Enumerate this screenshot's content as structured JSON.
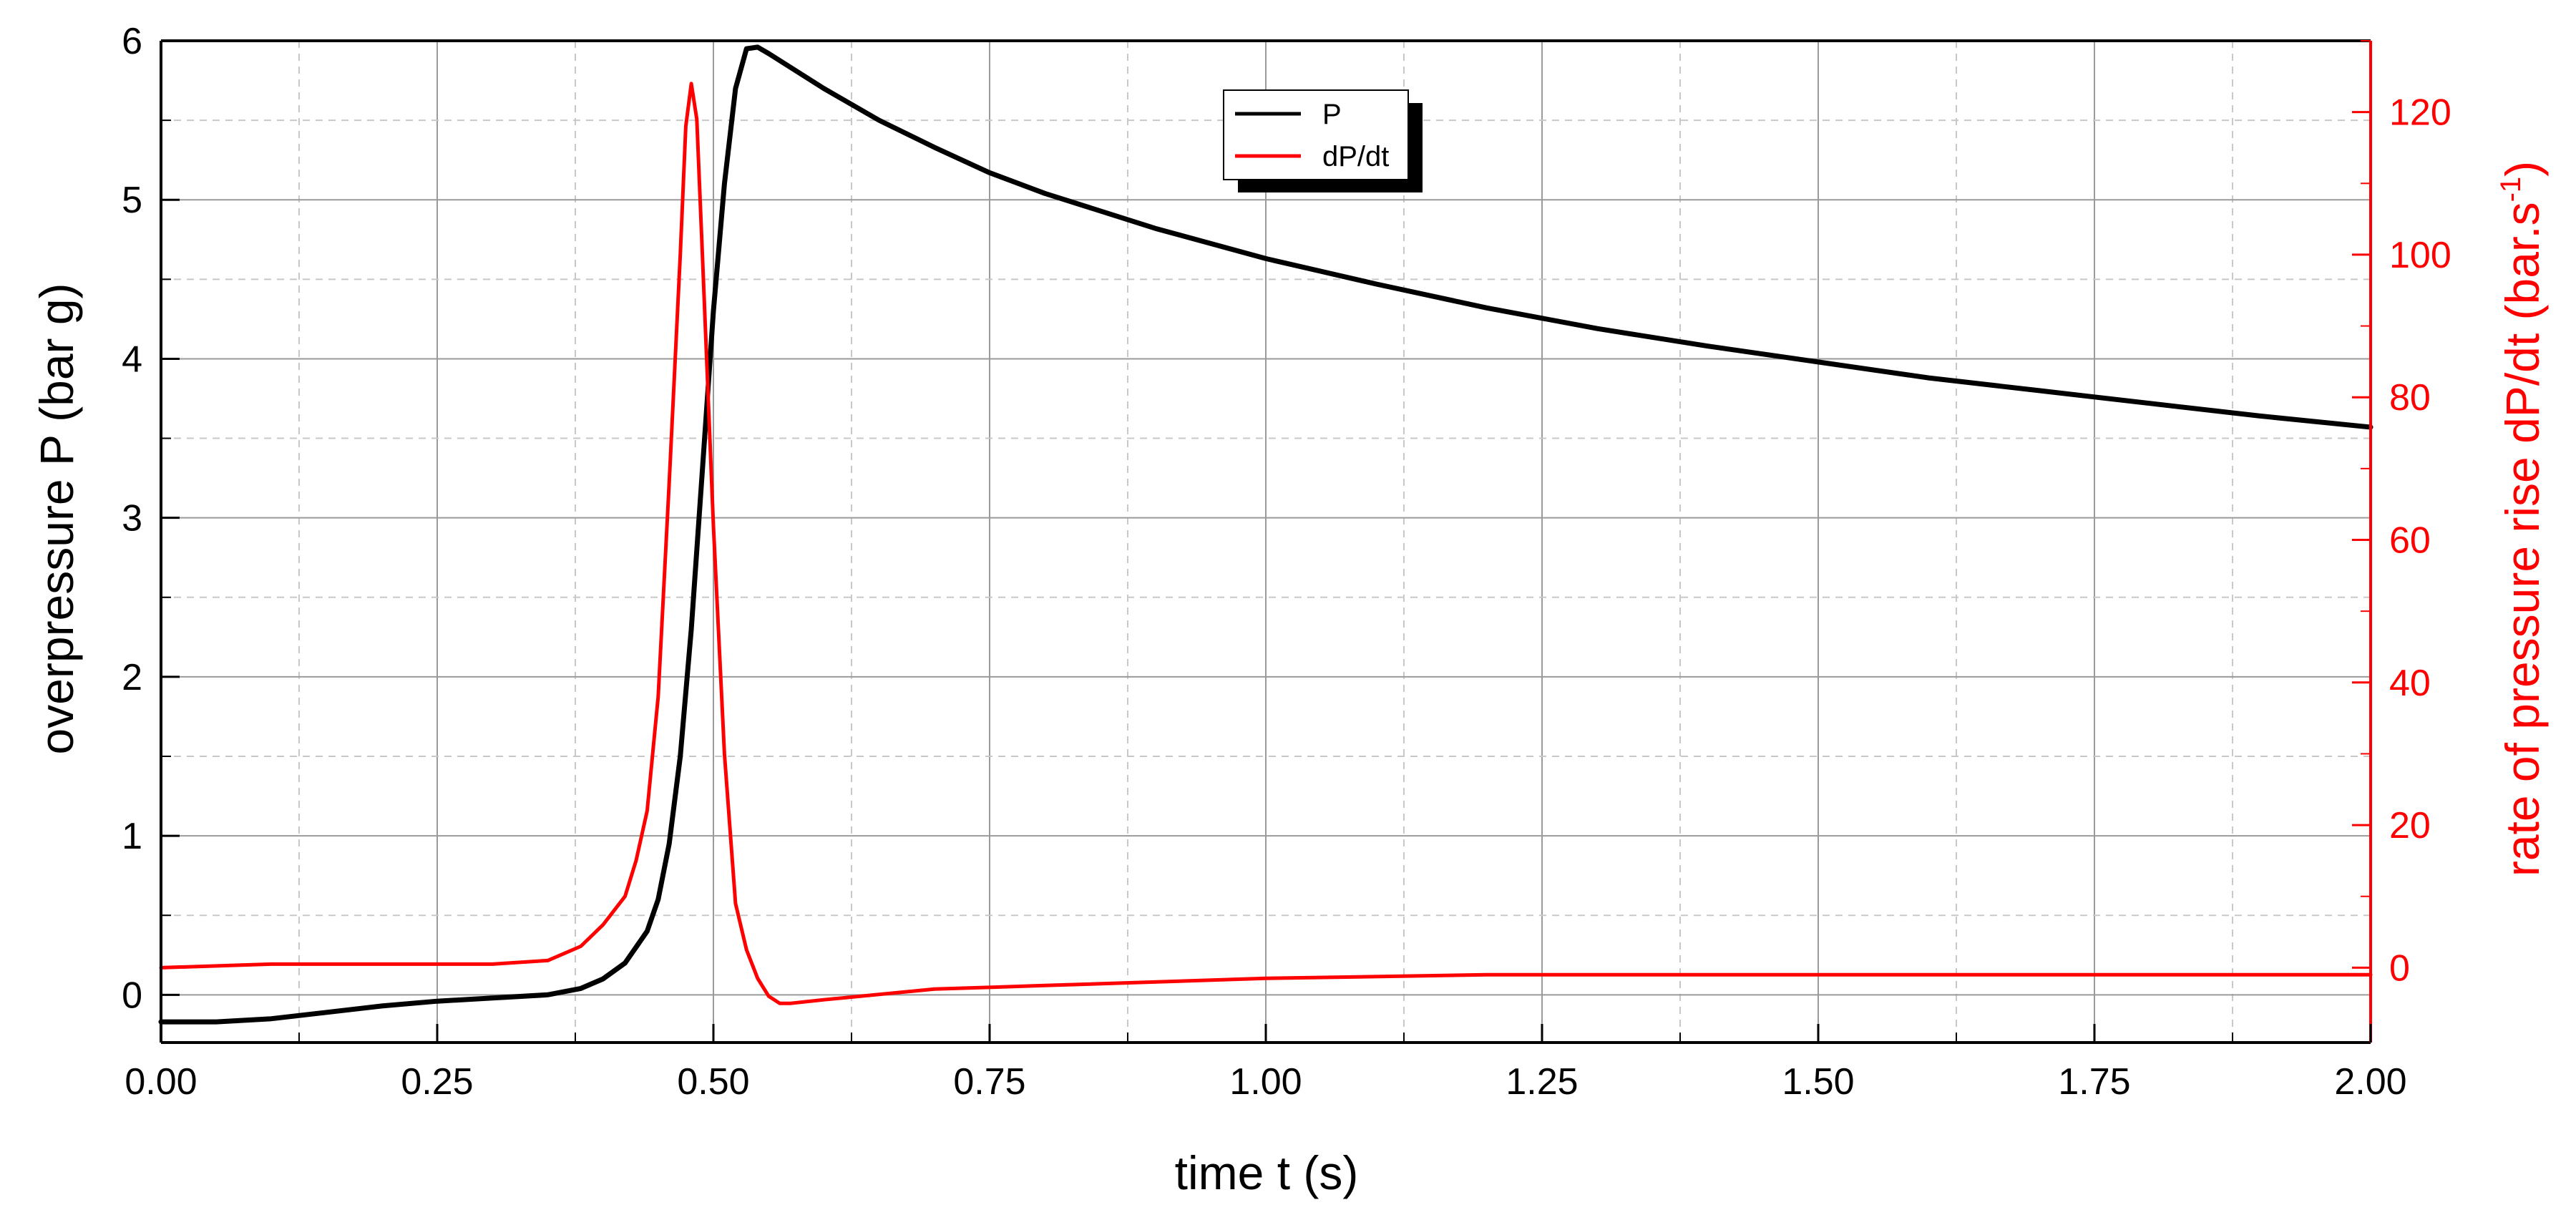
{
  "colors": {
    "pressure": "#000000",
    "rate": "#ff0000",
    "grid_major": "#9a9a9a",
    "grid_minor": "#c8c8c8",
    "legend_shadow": "#000000"
  },
  "chart_data": {
    "type": "line",
    "title": "",
    "xlabel": "time t (s)",
    "ylabel_left": "overpressure P (bar g)",
    "ylabel_right": "rate of pressure rise dP/dt (bar.s",
    "ylabel_right_sup": "-1",
    "ylabel_right_close": ")",
    "xlim": [
      0,
      2.0
    ],
    "ylim_left": [
      -0.3,
      6
    ],
    "ylim_right": [
      -10.5,
      130
    ],
    "x_ticks": [
      "0.00",
      "0.25",
      "0.50",
      "0.75",
      "1.00",
      "1.25",
      "1.50",
      "1.75",
      "2.00"
    ],
    "y_ticks_left": [
      "0",
      "1",
      "2",
      "3",
      "4",
      "5",
      "6"
    ],
    "y_ticks_right": [
      "0",
      "20",
      "40",
      "60",
      "80",
      "100",
      "120"
    ],
    "grid": true,
    "legend_position": "top-center",
    "legend": [
      "P",
      "dP/dt"
    ],
    "series": [
      {
        "name": "P",
        "axis": "left",
        "x": [
          0.0,
          0.05,
          0.1,
          0.15,
          0.2,
          0.25,
          0.3,
          0.35,
          0.38,
          0.4,
          0.42,
          0.44,
          0.45,
          0.46,
          0.47,
          0.48,
          0.49,
          0.5,
          0.51,
          0.52,
          0.53,
          0.54,
          0.55,
          0.6,
          0.65,
          0.7,
          0.75,
          0.8,
          0.9,
          1.0,
          1.1,
          1.2,
          1.3,
          1.4,
          1.5,
          1.6,
          1.7,
          1.8,
          1.9,
          2.0
        ],
        "y": [
          -0.17,
          -0.17,
          -0.15,
          -0.11,
          -0.07,
          -0.04,
          -0.02,
          0.0,
          0.04,
          0.1,
          0.2,
          0.4,
          0.6,
          0.95,
          1.5,
          2.3,
          3.3,
          4.3,
          5.1,
          5.7,
          5.95,
          5.96,
          5.92,
          5.7,
          5.5,
          5.33,
          5.17,
          5.04,
          4.82,
          4.63,
          4.47,
          4.32,
          4.19,
          4.08,
          3.98,
          3.88,
          3.8,
          3.72,
          3.64,
          3.57
        ]
      },
      {
        "name": "dP/dt",
        "axis": "right",
        "x": [
          0.0,
          0.1,
          0.2,
          0.3,
          0.35,
          0.38,
          0.4,
          0.42,
          0.43,
          0.44,
          0.45,
          0.46,
          0.47,
          0.475,
          0.48,
          0.485,
          0.49,
          0.5,
          0.51,
          0.52,
          0.53,
          0.54,
          0.55,
          0.56,
          0.57,
          0.6,
          0.7,
          0.8,
          1.0,
          1.2,
          1.5,
          1.8,
          2.0
        ],
        "y": [
          0.0,
          0.5,
          0.5,
          0.5,
          1.0,
          3.0,
          6.0,
          10.0,
          15.0,
          22.0,
          38.0,
          68.0,
          100.0,
          118.0,
          124.0,
          119.0,
          100.0,
          62.0,
          30.0,
          9.0,
          2.5,
          -1.5,
          -4.0,
          -5.0,
          -5.0,
          -4.5,
          -3.0,
          -2.5,
          -1.5,
          -1.0,
          -1.0,
          -1.0,
          -1.0
        ]
      }
    ]
  }
}
